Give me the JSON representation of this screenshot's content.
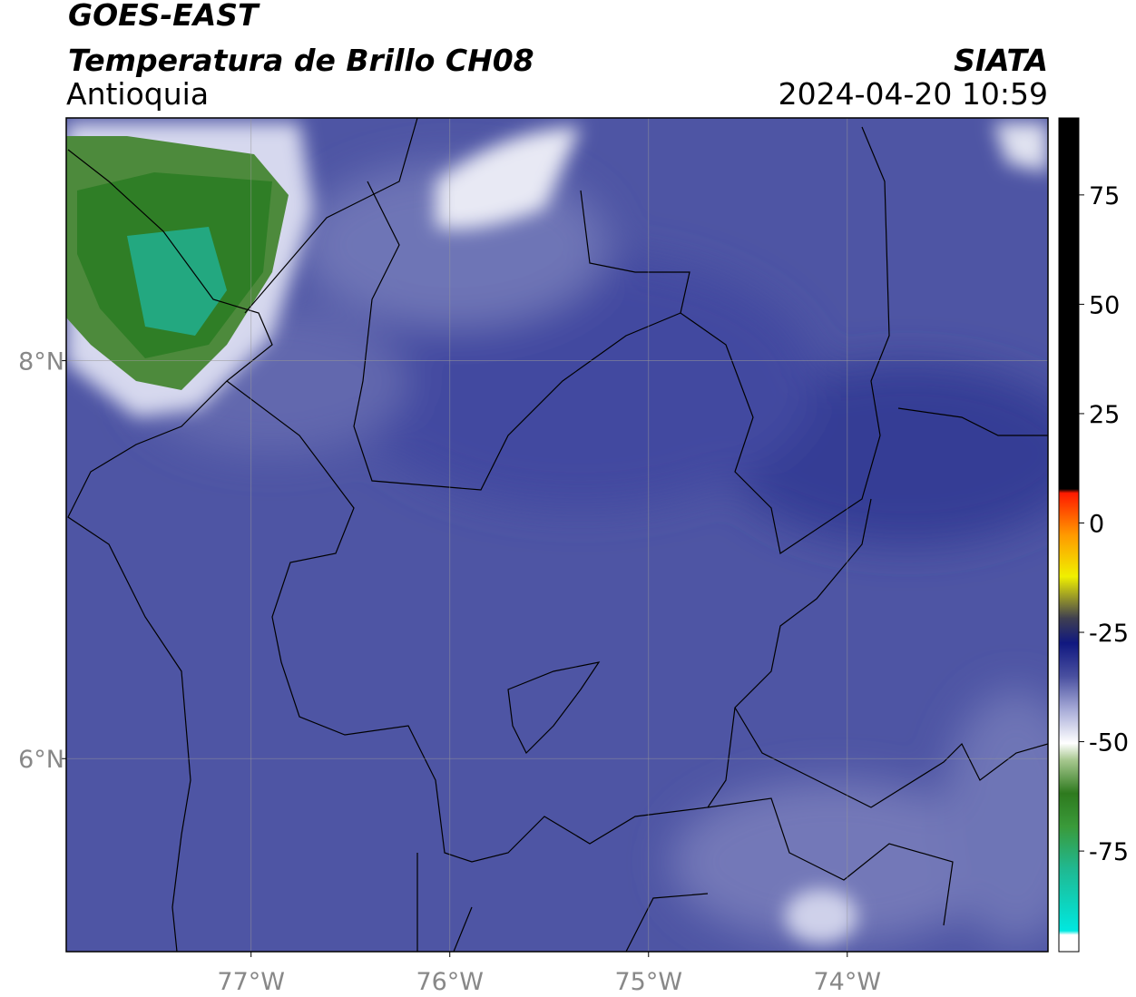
{
  "header": {
    "title": "GOES-EAST",
    "subtitle": "Temperatura de Brillo CH08",
    "region": "Antioquia",
    "source": "SIATA",
    "datetime": "2024-04-20 10:59"
  },
  "map": {
    "xlim": [
      -77.93,
      -72.99
    ],
    "ylim": [
      5.03,
      9.22
    ],
    "xticks": [
      {
        "value": -77,
        "label": "77°W"
      },
      {
        "value": -76,
        "label": "76°W"
      },
      {
        "value": -75,
        "label": "75°W"
      },
      {
        "value": -74,
        "label": "74°W"
      }
    ],
    "yticks": [
      {
        "value": 6,
        "label": "6°N"
      },
      {
        "value": 8,
        "label": "8°N"
      }
    ],
    "grid": true
  },
  "colorbar": {
    "lim": [
      -98,
      92.6
    ],
    "ticks": [
      75,
      50,
      25,
      0,
      -25,
      -50,
      -75
    ]
  }
}
